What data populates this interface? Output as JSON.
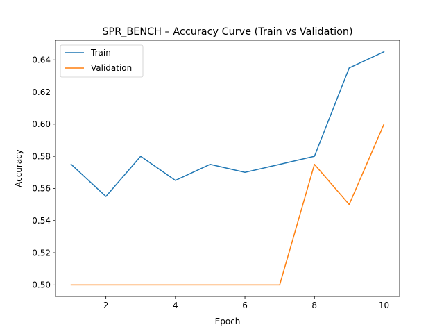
{
  "chart_data": {
    "type": "line",
    "title": "SPR_BENCH – Accuracy Curve (Train vs Validation)",
    "xlabel": "Epoch",
    "ylabel": "Accuracy",
    "x": [
      1,
      2,
      3,
      4,
      5,
      6,
      7,
      8,
      9,
      10
    ],
    "xlim": [
      0.55,
      10.45
    ],
    "ylim": [
      0.4928,
      0.6522
    ],
    "xticks": [
      2,
      4,
      6,
      8,
      10
    ],
    "yticks": [
      0.5,
      0.52,
      0.54,
      0.56,
      0.58,
      0.6,
      0.62,
      0.64
    ],
    "xtick_labels": [
      "2",
      "4",
      "6",
      "8",
      "10"
    ],
    "ytick_labels": [
      "0.50",
      "0.52",
      "0.54",
      "0.56",
      "0.58",
      "0.60",
      "0.62",
      "0.64"
    ],
    "grid": false,
    "legend_position": "top-left",
    "series": [
      {
        "name": "Train",
        "color": "#1f77b4",
        "values": [
          0.575,
          0.555,
          0.58,
          0.565,
          0.575,
          0.57,
          0.575,
          0.58,
          0.635,
          0.645
        ]
      },
      {
        "name": "Validation",
        "color": "#ff7f0e",
        "values": [
          0.5,
          0.5,
          0.5,
          0.5,
          0.5,
          0.5,
          0.5,
          0.575,
          0.55,
          0.6
        ]
      }
    ]
  }
}
